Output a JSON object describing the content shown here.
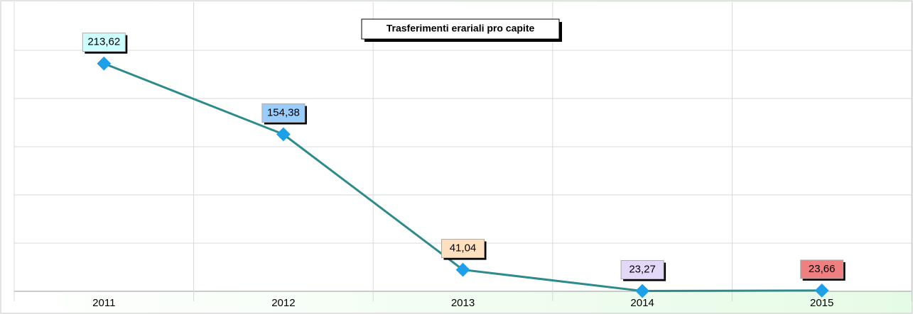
{
  "chart_data": {
    "type": "line",
    "title": "Trasferimenti erariali pro capite",
    "categories": [
      "2011",
      "2012",
      "2013",
      "2014",
      "2015"
    ],
    "values": [
      213.62,
      154.38,
      41.04,
      23.27,
      23.66
    ],
    "value_labels": [
      "213,62",
      "154,38",
      "41,04",
      "23,27",
      "23,66"
    ],
    "label_colors": [
      "#ccffff",
      "#99ccff",
      "#fde0c0",
      "#e4d8f8",
      "#f08080"
    ],
    "color": "#2e8b8b",
    "marker_color": "#1ea0e8",
    "ylim": [
      23,
      265
    ],
    "yticks": [
      23,
      63.3,
      103.7,
      144,
      184.3,
      224.7
    ],
    "grid": true
  }
}
